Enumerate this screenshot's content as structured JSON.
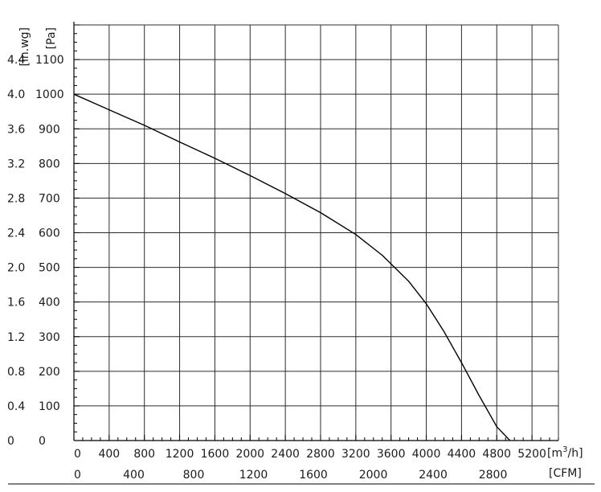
{
  "chart_data": {
    "type": "line",
    "title": "",
    "x_primary": {
      "unit_prefix": "[m",
      "unit_sup": "3",
      "unit_suffix": "/h]",
      "range": [
        0,
        5500
      ],
      "ticks": [
        0,
        400,
        800,
        1200,
        1600,
        2000,
        2400,
        2800,
        3200,
        3600,
        4000,
        4400,
        4800,
        5200
      ],
      "tick_labels": [
        "0",
        "400",
        "800",
        "1200",
        "1600",
        "2000",
        "2400",
        "2800",
        "3200",
        "3600",
        "4000",
        "4400",
        "4800",
        "5200"
      ]
    },
    "x_secondary": {
      "unit": "[CFM]",
      "tick_labels": [
        "0",
        "400",
        "800",
        "1200",
        "1600",
        "2000",
        "2400",
        "2800"
      ],
      "tick_values_cfm": [
        0,
        400,
        800,
        1200,
        1600,
        2000,
        2400,
        2800
      ]
    },
    "y_primary": {
      "unit": "[Pa]",
      "range": [
        0,
        1200
      ],
      "ticks": [
        0,
        100,
        200,
        300,
        400,
        500,
        600,
        700,
        800,
        900,
        1000,
        1100
      ],
      "tick_labels": [
        "0",
        "100",
        "200",
        "300",
        "400",
        "500",
        "600",
        "700",
        "800",
        "900",
        "1000",
        "1100"
      ]
    },
    "y_secondary": {
      "unit": "[in.wg]",
      "tick_labels": [
        "0",
        "0.4",
        "0.8",
        "1.2",
        "1.6",
        "2.0",
        "2.4",
        "2.8",
        "3.2",
        "3.6",
        "4.0",
        "4.4"
      ]
    },
    "grid": true,
    "series": [
      {
        "x": [
          0,
          400,
          800,
          1200,
          1600,
          2000,
          2400,
          2800,
          3200,
          3500,
          3800,
          4000,
          4200,
          4400,
          4600,
          4800,
          4950
        ],
        "y": [
          1000,
          955,
          910,
          862,
          815,
          765,
          713,
          658,
          595,
          535,
          460,
          395,
          315,
          225,
          130,
          40,
          0
        ]
      }
    ]
  }
}
